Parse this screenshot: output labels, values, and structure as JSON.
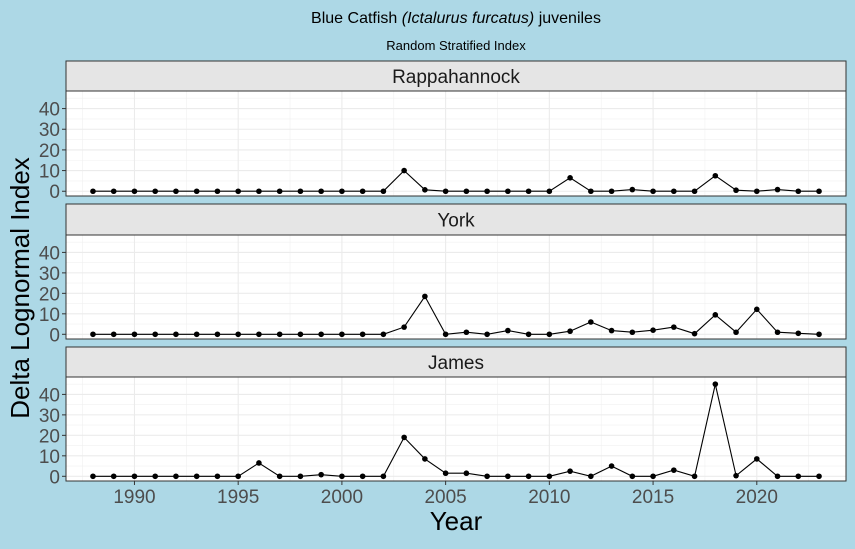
{
  "chart_data": {
    "type": "line",
    "title_parts": [
      "Blue Catfish ",
      "(Ictalurus furcatus)",
      " juveniles"
    ],
    "subtitle": "Random Stratified Index",
    "xlabel": "Year",
    "ylabel": "Delta Lognormal Index",
    "xlim": [
      1986.7,
      2024.3
    ],
    "ylim": [
      -2.3,
      48.5
    ],
    "xticks": [
      1990,
      1995,
      2000,
      2005,
      2010,
      2015,
      2020
    ],
    "yticks": [
      0,
      10,
      20,
      30,
      40
    ],
    "grid": true,
    "x": [
      1988,
      1989,
      1990,
      1991,
      1992,
      1993,
      1994,
      1995,
      1996,
      1997,
      1998,
      1999,
      2000,
      2001,
      2002,
      2003,
      2004,
      2005,
      2006,
      2007,
      2008,
      2009,
      2010,
      2011,
      2012,
      2013,
      2014,
      2015,
      2016,
      2017,
      2018,
      2019,
      2020,
      2021,
      2022,
      2023
    ],
    "panels": [
      {
        "name": "Rappahannock",
        "values": [
          0,
          0,
          0,
          0,
          0,
          0,
          0,
          0,
          0,
          0,
          0,
          0,
          0,
          0,
          0,
          10,
          0.7,
          0,
          0,
          0,
          0,
          0,
          0,
          6.5,
          0,
          0,
          0.8,
          0,
          0,
          0,
          7.5,
          0.5,
          0,
          0.8,
          0,
          0
        ]
      },
      {
        "name": "York",
        "values": [
          0,
          0,
          0,
          0,
          0,
          0,
          0,
          0,
          0,
          0,
          0,
          0,
          0,
          0,
          0,
          3.5,
          18.5,
          0,
          1,
          0,
          1.8,
          0,
          0,
          1.5,
          6,
          1.8,
          1,
          2,
          3.5,
          0.3,
          9.5,
          1,
          12.2,
          1,
          0.5,
          0
        ]
      },
      {
        "name": "James",
        "values": [
          0,
          0,
          0,
          0,
          0,
          0,
          0,
          0,
          6.5,
          0,
          0,
          0.8,
          0,
          0,
          0,
          19,
          8.5,
          1.5,
          1.5,
          0,
          0,
          0,
          0,
          2.5,
          0,
          5,
          0,
          0,
          3,
          0,
          45,
          0.3,
          8.5,
          0,
          0,
          0
        ]
      }
    ]
  }
}
